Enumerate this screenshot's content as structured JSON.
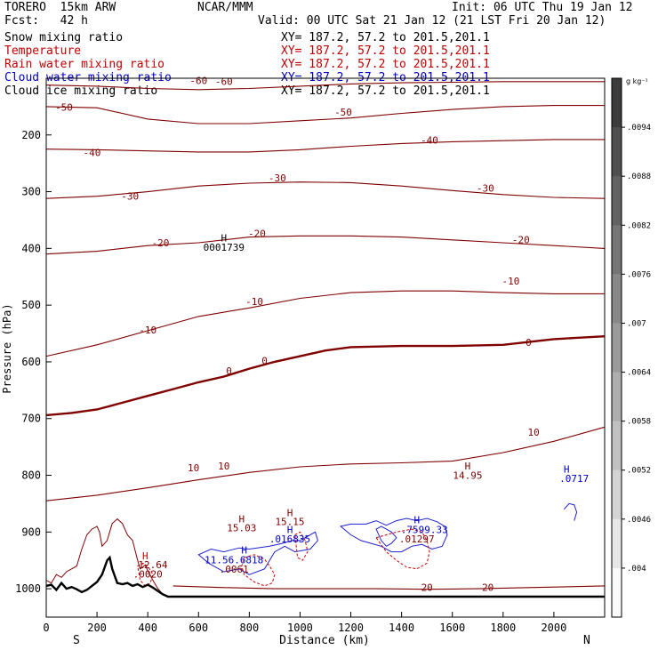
{
  "header": {
    "model": "TORERO  15km ARW",
    "org": "NCAR/MMM",
    "init": "Init: 06 UTC Thu 19 Jan 12",
    "fcst": "Fcst:   42 h",
    "valid": "Valid: 00 UTC Sat 21 Jan 12 (21 LST Fri 20 Jan 12)"
  },
  "fields": [
    {
      "name": "Snow mixing ratio",
      "xy": "XY= 187.2, 57.2 to 201.5,201.1",
      "color": "#000000"
    },
    {
      "name": "Temperature",
      "xy": "XY= 187.2, 57.2 to 201.5,201.1",
      "color": "#c00000"
    },
    {
      "name": "Rain water mixing ratio",
      "xy": "XY= 187.2, 57.2 to 201.5,201.1",
      "color": "#c00000"
    },
    {
      "name": "Cloud water mixing ratio",
      "xy": "XY= 187.2, 57.2 to 201.5,201.1",
      "color": "#0000c0"
    },
    {
      "name": "Cloud ice mixing ratio",
      "xy": "XY= 187.2, 57.2 to 201.5,201.1",
      "color": "#000000"
    }
  ],
  "chart_data": {
    "type": "contour cross-section",
    "xlabel": "Distance (km)",
    "ylabel": "Pressure (hPa)",
    "xlim": [
      0,
      2200
    ],
    "ylim": [
      1050,
      100
    ],
    "x_ticks": [
      0,
      200,
      400,
      600,
      800,
      1000,
      1200,
      1400,
      1600,
      1800,
      2000
    ],
    "y_ticks": [
      200,
      300,
      400,
      500,
      600,
      700,
      800,
      900,
      1000
    ],
    "left_end": "S",
    "right_end": "N",
    "colorbar": {
      "unit": "g kg⁻¹",
      "ticks": [
        ".0094",
        ".0088",
        ".0082",
        ".0076",
        ".007",
        ".0064",
        ".0058",
        ".0052",
        ".0046",
        ".004"
      ]
    },
    "temperature_contours": [
      {
        "value": -60,
        "color": "#800000",
        "x": [
          0,
          200,
          400,
          600,
          800,
          1000,
          1200,
          1400,
          1600,
          1800,
          2000,
          2200
        ],
        "p": [
          112,
          114,
          118,
          120,
          118,
          114,
          110,
          108,
          107,
          106,
          106,
          106
        ]
      },
      {
        "value": -50,
        "color": "#800000",
        "x": [
          0,
          200,
          300,
          400,
          600,
          800,
          1000,
          1200,
          1400,
          1600,
          1800,
          2000,
          2200
        ],
        "p": [
          150,
          152,
          162,
          172,
          180,
          180,
          175,
          170,
          162,
          155,
          150,
          148,
          148
        ]
      },
      {
        "value": -40,
        "color": "#800000",
        "x": [
          0,
          200,
          400,
          600,
          800,
          1000,
          1200,
          1400,
          1600,
          1800,
          2000,
          2200
        ],
        "p": [
          225,
          226,
          228,
          230,
          230,
          226,
          220,
          215,
          212,
          210,
          208,
          208
        ]
      },
      {
        "value": -30,
        "color": "#800000",
        "x": [
          0,
          200,
          400,
          600,
          800,
          1000,
          1200,
          1400,
          1600,
          1800,
          2000,
          2200
        ],
        "p": [
          312,
          308,
          300,
          290,
          285,
          283,
          284,
          290,
          298,
          305,
          310,
          312
        ]
      },
      {
        "value": -20,
        "color": "#800000",
        "x": [
          0,
          200,
          400,
          600,
          800,
          1000,
          1200,
          1400,
          1600,
          1800,
          2000,
          2200
        ],
        "p": [
          410,
          405,
          395,
          390,
          380,
          378,
          378,
          380,
          385,
          390,
          395,
          400
        ]
      },
      {
        "value": -10,
        "color": "#800000",
        "x": [
          0,
          200,
          400,
          600,
          800,
          1000,
          1200,
          1400,
          1600,
          1800,
          2000,
          2200
        ],
        "p": [
          590,
          570,
          545,
          520,
          505,
          488,
          478,
          475,
          475,
          478,
          480,
          480
        ]
      },
      {
        "value": 0,
        "color": "#800000",
        "x": [
          0,
          100,
          200,
          300,
          400,
          500,
          600,
          700,
          800,
          900,
          1000,
          1100,
          1200,
          1400,
          1600,
          1800,
          2000,
          2200
        ],
        "p": [
          694,
          690,
          684,
          672,
          660,
          648,
          636,
          626,
          612,
          600,
          590,
          580,
          574,
          572,
          572,
          570,
          560,
          555
        ]
      },
      {
        "value": 10,
        "color": "#800000",
        "x": [
          0,
          200,
          400,
          600,
          800,
          1000,
          1200,
          1400,
          1600,
          1800,
          2000,
          2200
        ],
        "p": [
          845,
          835,
          822,
          808,
          795,
          785,
          780,
          778,
          775,
          760,
          740,
          715
        ]
      },
      {
        "value": 20,
        "color": "#800000",
        "x": [
          500,
          700,
          900,
          1100,
          1300,
          1500,
          1700,
          1900,
          2100,
          2200
        ],
        "p": [
          995,
          998,
          1000,
          1000,
          1000,
          1001,
          1000,
          998,
          996,
          995
        ]
      }
    ],
    "labels": [
      {
        "text": "-60",
        "x": 600,
        "p": 110,
        "color": "#800000"
      },
      {
        "text": "-60",
        "x": 700,
        "p": 112,
        "color": "#800000"
      },
      {
        "text": "-50",
        "x": 70,
        "p": 157,
        "color": "#800000"
      },
      {
        "text": "-50",
        "x": 1170,
        "p": 166,
        "color": "#800000"
      },
      {
        "text": "-40",
        "x": 180,
        "p": 237,
        "color": "#800000"
      },
      {
        "text": "-40",
        "x": 1510,
        "p": 215,
        "color": "#800000"
      },
      {
        "text": "-30",
        "x": 330,
        "p": 314,
        "color": "#800000"
      },
      {
        "text": "-30",
        "x": 910,
        "p": 282,
        "color": "#800000"
      },
      {
        "text": "-30",
        "x": 1730,
        "p": 300,
        "color": "#800000"
      },
      {
        "text": "-20",
        "x": 450,
        "p": 396,
        "color": "#800000"
      },
      {
        "text": "-20",
        "x": 830,
        "p": 380,
        "color": "#800000"
      },
      {
        "text": "-20",
        "x": 1870,
        "p": 391,
        "color": "#800000"
      },
      {
        "text": "-10",
        "x": 400,
        "p": 550,
        "color": "#800000"
      },
      {
        "text": "-10",
        "x": 820,
        "p": 500,
        "color": "#800000"
      },
      {
        "text": "-10",
        "x": 1830,
        "p": 464,
        "color": "#800000"
      },
      {
        "text": "0",
        "x": 720,
        "p": 622,
        "color": "#800000"
      },
      {
        "text": "0",
        "x": 860,
        "p": 604,
        "color": "#800000"
      },
      {
        "text": "0",
        "x": 1900,
        "p": 572,
        "color": "#800000"
      },
      {
        "text": "10",
        "x": 580,
        "p": 793,
        "color": "#800000"
      },
      {
        "text": "10",
        "x": 700,
        "p": 790,
        "color": "#800000"
      },
      {
        "text": "10",
        "x": 1920,
        "p": 730,
        "color": "#800000"
      },
      {
        "text": "20",
        "x": 1500,
        "p": 1004,
        "color": "#800000"
      },
      {
        "text": "20",
        "x": 1740,
        "p": 1004,
        "color": "#800000"
      },
      {
        "text": "H",
        "x": 700,
        "p": 388,
        "color": "#000000"
      },
      {
        "text": "0001739",
        "x": 700,
        "p": 404,
        "color": "#000000"
      },
      {
        "text": "H",
        "x": 1660,
        "p": 790,
        "color": "#800000"
      },
      {
        "text": "14.95",
        "x": 1660,
        "p": 806,
        "color": "#800000"
      },
      {
        "text": "H",
        "x": 770,
        "p": 883,
        "color": "#800000"
      },
      {
        "text": "15.03",
        "x": 770,
        "p": 899,
        "color": "#800000"
      },
      {
        "text": "H",
        "x": 960,
        "p": 872,
        "color": "#800000"
      },
      {
        "text": "15.15",
        "x": 960,
        "p": 888,
        "color": "#800000"
      },
      {
        "text": "H",
        "x": 960,
        "p": 902,
        "color": "#0000c0"
      },
      {
        "text": ".016835",
        "x": 960,
        "p": 918,
        "color": "#0000c0"
      },
      {
        "text": "H",
        "x": 2050,
        "p": 795,
        "color": "#0000c0"
      },
      {
        "text": ".0717",
        "x": 2080,
        "p": 812,
        "color": "#0000c0"
      },
      {
        "text": "H",
        "x": 780,
        "p": 938,
        "color": "#0000c0"
      },
      {
        "text": "11.56.6818",
        "x": 740,
        "p": 955,
        "color": "#0000c0"
      },
      {
        "text": ".0061",
        "x": 740,
        "p": 972,
        "color": "#800000"
      },
      {
        "text": "H",
        "x": 390,
        "p": 948,
        "color": "#c00000"
      },
      {
        "text": "12.64",
        "x": 420,
        "p": 964,
        "color": "#800000"
      },
      {
        "text": ".0020",
        "x": 400,
        "p": 980,
        "color": "#800000"
      },
      {
        "text": "H",
        "x": 1460,
        "p": 885,
        "color": "#0000c0"
      },
      {
        "text": ".7599.33",
        "x": 1490,
        "p": 902,
        "color": "#0000c0"
      },
      {
        "text": ".01297",
        "x": 1460,
        "p": 918,
        "color": "#800000"
      }
    ],
    "terrain": {
      "x": [
        0,
        20,
        40,
        60,
        80,
        100,
        120,
        140,
        160,
        180,
        200,
        220,
        240,
        250,
        260,
        280,
        300,
        320,
        340,
        360,
        380,
        400,
        420,
        440,
        460,
        480,
        500,
        600,
        800,
        1000,
        1200,
        1400,
        1600,
        1800,
        2000,
        2200
      ],
      "p": [
        995,
        993,
        1002,
        990,
        1000,
        997,
        1001,
        1006,
        1002,
        995,
        988,
        975,
        950,
        945,
        965,
        990,
        992,
        990,
        995,
        992,
        997,
        993,
        998,
        1004,
        1010,
        1014,
        1014,
        1014,
        1014,
        1014,
        1014,
        1014,
        1014,
        1014,
        1014,
        1014
      ]
    },
    "terrain_outline": {
      "x": [
        0,
        20,
        40,
        60,
        80,
        100,
        120,
        140,
        160,
        180,
        200,
        210,
        220,
        240,
        260,
        280,
        300,
        320,
        340,
        360,
        370,
        380,
        390,
        400,
        420,
        440,
        460,
        480,
        500
      ],
      "p": [
        985,
        990,
        975,
        980,
        970,
        965,
        960,
        930,
        905,
        895,
        890,
        900,
        925,
        915,
        885,
        877,
        885,
        905,
        915,
        950,
        965,
        962,
        958,
        968,
        985,
        1000,
        1010,
        1014,
        1014
      ]
    },
    "cloud_water": [
      {
        "x": [
          600,
          650,
          700,
          760,
          800,
          880,
          930,
          970,
          1000,
          1060,
          1070,
          1040,
          980,
          940,
          900,
          880,
          860,
          800,
          760,
          700,
          640,
          600
        ],
        "p": [
          940,
          930,
          935,
          928,
          930,
          925,
          920,
          915,
          915,
          900,
          915,
          930,
          935,
          925,
          935,
          950,
          965,
          975,
          965,
          970,
          955,
          940
        ]
      },
      {
        "x": [
          1160,
          1200,
          1260,
          1300,
          1340,
          1380,
          1420,
          1460,
          1500,
          1540,
          1570,
          1580,
          1560,
          1520,
          1480,
          1440,
          1400,
          1360,
          1320,
          1280,
          1240,
          1200,
          1160
        ],
        "p": [
          890,
          886,
          886,
          880,
          888,
          880,
          876,
          880,
          876,
          882,
          890,
          905,
          925,
          930,
          922,
          925,
          935,
          935,
          925,
          920,
          915,
          905,
          890
        ]
      },
      {
        "x": [
          1300,
          1320,
          1340,
          1360,
          1380,
          1360,
          1340,
          1320,
          1300
        ],
        "p": [
          895,
          890,
          895,
          900,
          910,
          920,
          925,
          915,
          895
        ]
      },
      {
        "x": [
          2040,
          2060,
          2080,
          2090,
          2080
        ],
        "p": [
          860,
          850,
          852,
          865,
          880
        ]
      }
    ],
    "rain_water": [
      {
        "x": [
          780,
          820,
          860,
          880,
          900,
          890,
          860,
          820,
          780,
          770,
          780
        ],
        "p": [
          945,
          940,
          948,
          960,
          975,
          990,
          995,
          988,
          975,
          960,
          945
        ]
      },
      {
        "x": [
          1300,
          1340,
          1380,
          1440,
          1480,
          1500,
          1510,
          1500,
          1460,
          1420,
          1380,
          1340,
          1300
        ],
        "p": [
          910,
          905,
          900,
          895,
          900,
          915,
          935,
          955,
          965,
          962,
          950,
          935,
          910
        ]
      },
      {
        "x": [
          980,
          1000,
          1020,
          1030,
          1010,
          990,
          980
        ],
        "p": [
          905,
          900,
          915,
          935,
          950,
          945,
          905
        ]
      },
      {
        "x": [
          360,
          380,
          400,
          420,
          410,
          390,
          370,
          360
        ],
        "p": [
          960,
          955,
          960,
          975,
          990,
          995,
          985,
          960
        ]
      }
    ]
  }
}
